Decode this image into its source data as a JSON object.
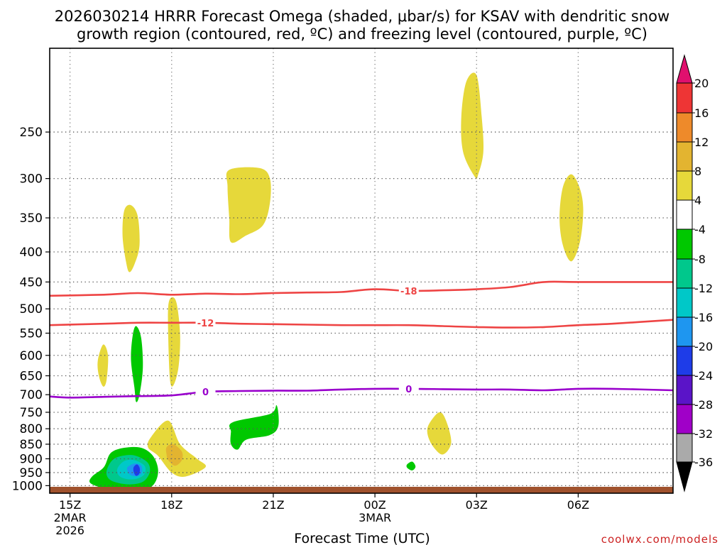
{
  "chart_data": {
    "type": "contour",
    "title_line1": "2026030214 HRRR Forecast Omega (shaded, μbar/s) for KSAV with dendritic snow",
    "title_line2": "growth region (contoured, red, ºC) and freezing level (contoured, purple, ºC)",
    "xlabel": "Forecast Time (UTC)",
    "ylabel": "",
    "credit": "coolwx.com/models",
    "x_ticks": [
      {
        "t": 0,
        "lines": [
          "15Z",
          "2MAR",
          "2026"
        ]
      },
      {
        "t": 3,
        "lines": [
          "18Z"
        ]
      },
      {
        "t": 6,
        "lines": [
          "21Z"
        ]
      },
      {
        "t": 9,
        "lines": [
          "00Z",
          "3MAR"
        ]
      },
      {
        "t": 12,
        "lines": [
          "03Z"
        ]
      },
      {
        "t": 15,
        "lines": [
          "06Z"
        ]
      }
    ],
    "x_range_hours": [
      -0.6,
      17.8
    ],
    "y_ticks": [
      250,
      300,
      350,
      400,
      450,
      500,
      550,
      600,
      650,
      700,
      750,
      800,
      850,
      900,
      950,
      1000
    ],
    "y_range_mb": [
      180,
      1030
    ],
    "y_scale": "log",
    "grid": true,
    "colorbar": {
      "labels": [
        "20",
        "16",
        "12",
        "8",
        "4",
        "-4",
        "-8",
        "-12",
        "-16",
        "-20",
        "-24",
        "-28",
        "-32",
        "-36"
      ],
      "bins": [
        {
          "range": [
            16,
            20
          ],
          "color": "#ee3535"
        },
        {
          "range": [
            12,
            16
          ],
          "color": "#ee8a2a"
        },
        {
          "range": [
            8,
            12
          ],
          "color": "#e3b430"
        },
        {
          "range": [
            4,
            8
          ],
          "color": "#e6d83a"
        },
        {
          "range": [
            -4,
            4
          ],
          "color": "#ffffff"
        },
        {
          "range": [
            -8,
            -4
          ],
          "color": "#00c800"
        },
        {
          "range": [
            -12,
            -8
          ],
          "color": "#00c88c"
        },
        {
          "range": [
            -16,
            -12
          ],
          "color": "#00c8c8"
        },
        {
          "range": [
            -20,
            -16
          ],
          "color": "#1e96f0"
        },
        {
          "range": [
            -24,
            -20
          ],
          "color": "#1e3ce8"
        },
        {
          "range": [
            -28,
            -24
          ],
          "color": "#5a14c8"
        },
        {
          "range": [
            -32,
            -28
          ],
          "color": "#a000c8"
        },
        {
          "range": [
            -36,
            -32
          ],
          "color": "#aaaaaa"
        }
      ],
      "top_arrow_color": "#e0106e",
      "bottom_arrow_color": "#000000"
    },
    "ground_color": "#a0522d",
    "contours": [
      {
        "name": "-18",
        "color": "#ee4444",
        "label_at_hour": 10.0,
        "points": [
          [
            -0.6,
            475
          ],
          [
            1,
            473
          ],
          [
            2,
            470
          ],
          [
            3,
            473
          ],
          [
            4,
            471
          ],
          [
            5,
            472
          ],
          [
            6,
            470
          ],
          [
            7,
            469
          ],
          [
            8,
            468
          ],
          [
            9,
            463
          ],
          [
            10,
            466
          ],
          [
            11,
            465
          ],
          [
            12,
            463
          ],
          [
            13,
            459
          ],
          [
            14,
            450
          ],
          [
            15,
            450
          ],
          [
            17.8,
            450
          ]
        ]
      },
      {
        "name": "-12",
        "color": "#ee4444",
        "label_at_hour": 4.0,
        "points": [
          [
            -0.6,
            533
          ],
          [
            1,
            530
          ],
          [
            2,
            528
          ],
          [
            3,
            528
          ],
          [
            4,
            528
          ],
          [
            5,
            530
          ],
          [
            6,
            531
          ],
          [
            7,
            532
          ],
          [
            8,
            533
          ],
          [
            9,
            533
          ],
          [
            10,
            533
          ],
          [
            11,
            535
          ],
          [
            12,
            537
          ],
          [
            13,
            538
          ],
          [
            14,
            537
          ],
          [
            15,
            533
          ],
          [
            16,
            530
          ],
          [
            17.8,
            522
          ]
        ]
      },
      {
        "name": "0",
        "color": "#9900cc",
        "label_at_hour": 4.0,
        "points": [
          [
            -0.6,
            705
          ],
          [
            0,
            708
          ],
          [
            1,
            706
          ],
          [
            2,
            704
          ],
          [
            3,
            702
          ],
          [
            4,
            692
          ],
          [
            5,
            690
          ],
          [
            6,
            689
          ],
          [
            7,
            689
          ],
          [
            8,
            686
          ],
          [
            9,
            684
          ],
          [
            10,
            684
          ],
          [
            11,
            685
          ],
          [
            12,
            686
          ],
          [
            13,
            686
          ],
          [
            14,
            688
          ],
          [
            15,
            684
          ],
          [
            16,
            684
          ],
          [
            17.8,
            688
          ]
        ]
      }
    ],
    "omega_regions": [
      {
        "value_bin": "4 to 8",
        "color": "#e6d83a",
        "points": [
          [
            1.6,
            340
          ],
          [
            1.8,
            333
          ],
          [
            2.0,
            348
          ],
          [
            2.05,
            390
          ],
          [
            1.9,
            420
          ],
          [
            1.75,
            433
          ],
          [
            1.65,
            415
          ],
          [
            1.55,
            375
          ]
        ]
      },
      {
        "value_bin": "4 to 8",
        "color": "#e6d83a",
        "points": [
          [
            4.7,
            290
          ],
          [
            5.6,
            288
          ],
          [
            5.9,
            300
          ],
          [
            5.9,
            330
          ],
          [
            5.7,
            360
          ],
          [
            5.2,
            375
          ],
          [
            4.75,
            385
          ],
          [
            4.7,
            350
          ],
          [
            4.65,
            310
          ]
        ]
      },
      {
        "value_bin": "4 to 8",
        "color": "#e6d83a",
        "points": [
          [
            11.7,
            205
          ],
          [
            12.0,
            200
          ],
          [
            12.15,
            235
          ],
          [
            12.2,
            270
          ],
          [
            12.05,
            295
          ],
          [
            11.95,
            298
          ],
          [
            11.6,
            270
          ],
          [
            11.55,
            235
          ]
        ]
      },
      {
        "value_bin": "4 to 8",
        "color": "#e6d83a",
        "points": [
          [
            14.55,
            310
          ],
          [
            14.8,
            295
          ],
          [
            15.05,
            312
          ],
          [
            15.15,
            340
          ],
          [
            15.05,
            385
          ],
          [
            14.8,
            415
          ],
          [
            14.55,
            390
          ],
          [
            14.45,
            350
          ]
        ]
      },
      {
        "value_bin": "4 to 8",
        "color": "#e6d83a",
        "points": [
          [
            2.9,
            495
          ],
          [
            3.0,
            478
          ],
          [
            3.15,
            490
          ],
          [
            3.25,
            555
          ],
          [
            3.2,
            630
          ],
          [
            3.05,
            675
          ],
          [
            2.95,
            660
          ],
          [
            2.9,
            560
          ]
        ]
      },
      {
        "value_bin": "4 to 8",
        "color": "#e6d83a",
        "points": [
          [
            0.82,
            612
          ],
          [
            0.98,
            575
          ],
          [
            1.12,
            600
          ],
          [
            1.08,
            660
          ],
          [
            0.98,
            678
          ],
          [
            0.85,
            650
          ]
        ]
      },
      {
        "value_bin": "4 to 8",
        "color": "#e6d83a",
        "points": [
          [
            2.4,
            825
          ],
          [
            2.9,
            775
          ],
          [
            3.25,
            850
          ],
          [
            3.75,
            900
          ],
          [
            4.0,
            930
          ],
          [
            3.4,
            965
          ],
          [
            3.0,
            950
          ],
          [
            2.6,
            890
          ],
          [
            2.3,
            860
          ]
        ]
      },
      {
        "value_bin": "8 to 12",
        "color": "#e3b430",
        "points": [
          [
            2.85,
            860
          ],
          [
            3.05,
            850
          ],
          [
            3.3,
            875
          ],
          [
            3.3,
            905
          ],
          [
            3.1,
            925
          ],
          [
            2.9,
            905
          ],
          [
            2.85,
            885
          ]
        ]
      },
      {
        "value_bin": "4 to 8",
        "color": "#e6d83a",
        "points": [
          [
            10.6,
            785
          ],
          [
            10.9,
            750
          ],
          [
            11.1,
            775
          ],
          [
            11.25,
            845
          ],
          [
            11.0,
            885
          ],
          [
            10.7,
            855
          ],
          [
            10.55,
            815
          ]
        ]
      },
      {
        "value_bin": "-8 to -4",
        "color": "#00c800",
        "points": [
          [
            1.85,
            555
          ],
          [
            1.95,
            535
          ],
          [
            2.1,
            560
          ],
          [
            2.15,
            630
          ],
          [
            2.05,
            700
          ],
          [
            1.95,
            720
          ],
          [
            1.9,
            680
          ],
          [
            1.8,
            610
          ]
        ]
      },
      {
        "value_bin": "-8 to -4",
        "color": "#00c800",
        "points": [
          [
            4.8,
            780
          ],
          [
            5.9,
            755
          ],
          [
            6.1,
            730
          ],
          [
            6.15,
            790
          ],
          [
            5.9,
            820
          ],
          [
            5.2,
            835
          ],
          [
            4.95,
            868
          ],
          [
            4.75,
            850
          ],
          [
            4.75,
            810
          ]
        ]
      },
      {
        "value_bin": "-8 to -4",
        "color": "#00c800",
        "points": [
          [
            9.95,
            920
          ],
          [
            10.1,
            910
          ],
          [
            10.2,
            928
          ],
          [
            10.1,
            942
          ],
          [
            9.95,
            932
          ]
        ]
      },
      {
        "value_bin": "-8 to -4",
        "color": "#00c800",
        "points": [
          [
            0.65,
            965
          ],
          [
            1.0,
            930
          ],
          [
            1.2,
            880
          ],
          [
            1.6,
            862
          ],
          [
            2.1,
            862
          ],
          [
            2.45,
            890
          ],
          [
            2.6,
            940
          ],
          [
            2.5,
            990
          ],
          [
            2.2,
            1018
          ],
          [
            1.6,
            1018
          ],
          [
            1.0,
            1010
          ],
          [
            0.6,
            990
          ]
        ]
      },
      {
        "value_bin": "-12 to -8",
        "color": "#00c88c",
        "points": [
          [
            1.1,
            935
          ],
          [
            1.3,
            900
          ],
          [
            1.7,
            887
          ],
          [
            2.0,
            892
          ],
          [
            2.3,
            915
          ],
          [
            2.35,
            950
          ],
          [
            2.15,
            985
          ],
          [
            1.75,
            995
          ],
          [
            1.3,
            985
          ],
          [
            1.1,
            965
          ]
        ]
      },
      {
        "value_bin": "-16 to -12",
        "color": "#00c8c8",
        "points": [
          [
            1.4,
            935
          ],
          [
            1.6,
            908
          ],
          [
            1.9,
            905
          ],
          [
            2.2,
            925
          ],
          [
            2.2,
            955
          ],
          [
            2.0,
            972
          ],
          [
            1.7,
            975
          ],
          [
            1.45,
            962
          ]
        ]
      },
      {
        "value_bin": "-20 to -16",
        "color": "#1e96f0",
        "points": [
          [
            1.7,
            930
          ],
          [
            1.9,
            917
          ],
          [
            2.1,
            925
          ],
          [
            2.12,
            950
          ],
          [
            2.0,
            963
          ],
          [
            1.8,
            960
          ],
          [
            1.7,
            945
          ]
        ]
      },
      {
        "value_bin": "-24 to -20",
        "color": "#1e3ce8",
        "points": [
          [
            1.88,
            930
          ],
          [
            1.98,
            920
          ],
          [
            2.06,
            935
          ],
          [
            2.04,
            955
          ],
          [
            1.95,
            962
          ],
          [
            1.88,
            948
          ]
        ]
      }
    ]
  }
}
